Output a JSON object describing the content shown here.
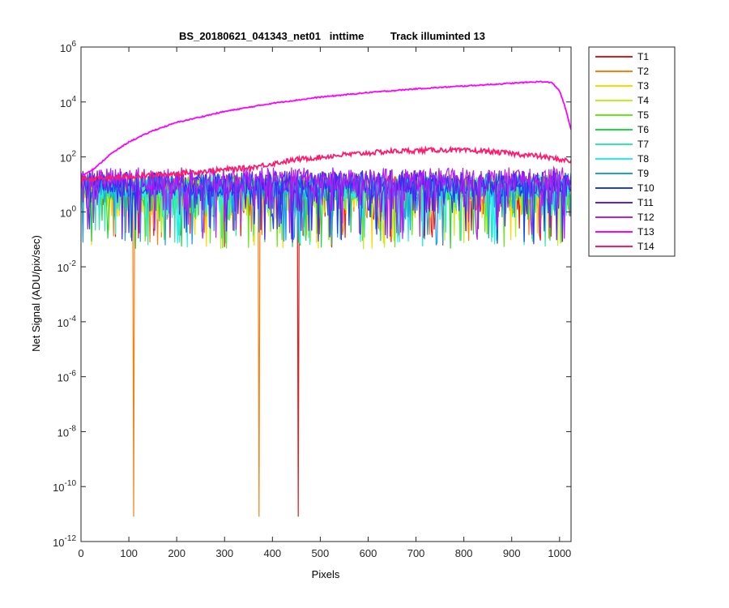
{
  "chart_data": {
    "type": "line",
    "title": "BS_20180621_041343_net01   inttime         Track illuminted 13",
    "xlabel": "Pixels",
    "ylabel": "Net Signal (ADU/pix/sec)",
    "xlim": [
      0,
      1024
    ],
    "ylim": [
      1e-12,
      1000000.0
    ],
    "yscale": "log",
    "grid": false,
    "legend_position": "outside-right",
    "x_ticks": [
      "0",
      "100",
      "200",
      "300",
      "400",
      "500",
      "600",
      "700",
      "800",
      "900",
      "1000"
    ],
    "y_ticks": [
      {
        "base": "10",
        "exp": "6"
      },
      {
        "base": "10",
        "exp": "4"
      },
      {
        "base": "10",
        "exp": "2"
      },
      {
        "base": "10",
        "exp": "0"
      },
      {
        "base": "10",
        "exp": "-2"
      },
      {
        "base": "10",
        "exp": "-4"
      },
      {
        "base": "10",
        "exp": "-6"
      },
      {
        "base": "10",
        "exp": "-8"
      },
      {
        "base": "10",
        "exp": "-10"
      },
      {
        "base": "10",
        "exp": "-12"
      }
    ],
    "series": [
      {
        "name": "T1",
        "color": "#e41a1c",
        "profile": "noise",
        "level": 8,
        "spikes": [
          [
            455,
            8e-12
          ]
        ]
      },
      {
        "name": "T2",
        "color": "#ff7f0e",
        "profile": "noise",
        "level": 8,
        "spikes": [
          [
            110,
            8e-12
          ],
          [
            372,
            8e-12
          ]
        ]
      },
      {
        "name": "T3",
        "color": "#ffd700",
        "profile": "noise",
        "level": 7,
        "spikes": []
      },
      {
        "name": "T4",
        "color": "#bfef1f",
        "profile": "noise",
        "level": 7,
        "spikes": []
      },
      {
        "name": "T5",
        "color": "#66e81a",
        "profile": "noise",
        "level": 7,
        "spikes": []
      },
      {
        "name": "T6",
        "color": "#22d844",
        "profile": "noise",
        "level": 7,
        "spikes": []
      },
      {
        "name": "T7",
        "color": "#33e8a8",
        "profile": "noise",
        "level": 8,
        "spikes": []
      },
      {
        "name": "T8",
        "color": "#22f0f0",
        "profile": "noise",
        "level": 8,
        "spikes": []
      },
      {
        "name": "T9",
        "color": "#1f9cf0",
        "profile": "noise",
        "level": 9,
        "spikes": []
      },
      {
        "name": "T10",
        "color": "#1f3cf0",
        "profile": "noise",
        "level": 10,
        "spikes": []
      },
      {
        "name": "T11",
        "color": "#5a1ff0",
        "profile": "noise",
        "level": 12,
        "spikes": []
      },
      {
        "name": "T12",
        "color": "#b21ff0",
        "profile": "noise",
        "level": 15,
        "spikes": []
      },
      {
        "name": "T13",
        "color": "#ff00ff",
        "profile": "peak",
        "points": [
          [
            0,
            20
          ],
          [
            30,
            40
          ],
          [
            60,
            120
          ],
          [
            100,
            350
          ],
          [
            150,
            900
          ],
          [
            200,
            1800
          ],
          [
            300,
            4500
          ],
          [
            400,
            9000
          ],
          [
            500,
            15000
          ],
          [
            600,
            22000
          ],
          [
            700,
            30000
          ],
          [
            800,
            38000
          ],
          [
            900,
            48000
          ],
          [
            960,
            55000
          ],
          [
            985,
            50000
          ],
          [
            1000,
            25000
          ],
          [
            1010,
            8000
          ],
          [
            1024,
            1000
          ]
        ]
      },
      {
        "name": "T14",
        "color": "#ff1a6e",
        "profile": "bump",
        "points": [
          [
            0,
            15
          ],
          [
            200,
            25
          ],
          [
            350,
            40
          ],
          [
            450,
            80
          ],
          [
            550,
            120
          ],
          [
            650,
            160
          ],
          [
            750,
            180
          ],
          [
            850,
            160
          ],
          [
            950,
            110
          ],
          [
            1024,
            70
          ]
        ]
      }
    ]
  }
}
